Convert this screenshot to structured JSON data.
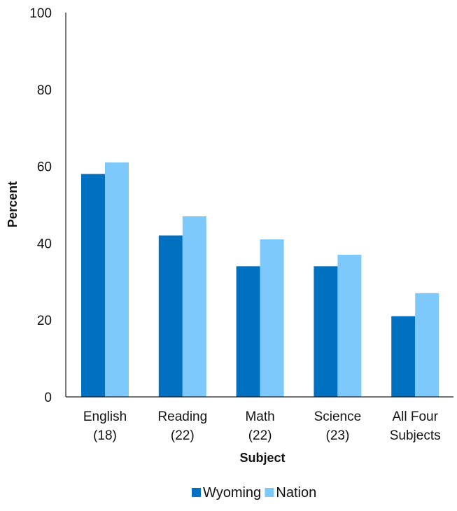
{
  "chart_data": {
    "type": "bar",
    "xlabel": "Subject",
    "ylabel": "Percent",
    "ylim": [
      0,
      100
    ],
    "yticks": [
      "0",
      "20",
      "40",
      "60",
      "80",
      "100"
    ],
    "categories": [
      [
        "English",
        "(18)"
      ],
      [
        "Reading",
        "(22)"
      ],
      [
        "Math",
        "(22)"
      ],
      [
        "Science",
        "(23)"
      ],
      [
        "All Four",
        "Subjects"
      ]
    ],
    "series": [
      {
        "name": "Wyoming",
        "color": "#0070C0",
        "values": [
          58,
          42,
          34,
          34,
          21
        ]
      },
      {
        "name": "Nation",
        "color": "#7DC9FB",
        "values": [
          61,
          47,
          41,
          37,
          27
        ]
      }
    ],
    "grid": false,
    "legend_position": "bottom-center"
  }
}
